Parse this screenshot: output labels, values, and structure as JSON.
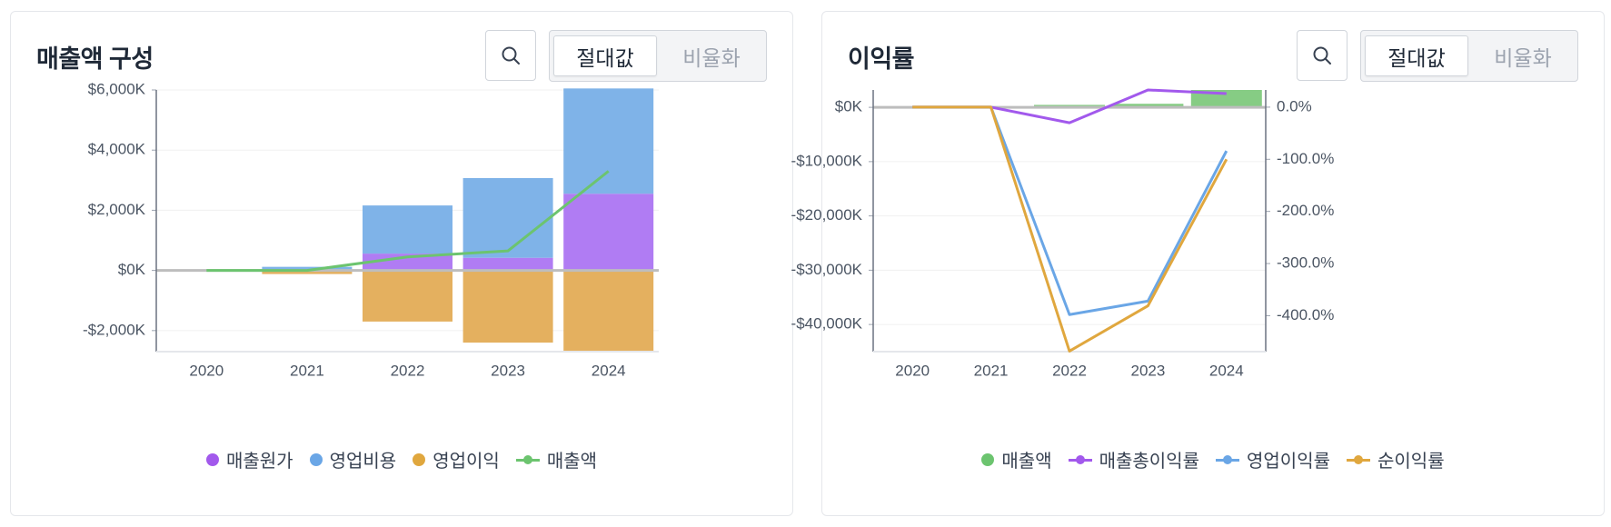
{
  "panels": [
    {
      "title": "매출액 구성",
      "toggle": {
        "options": [
          "절대값",
          "비율화"
        ],
        "selected": "절대값"
      },
      "legend": [
        {
          "label": "매출원가",
          "marker": "dot",
          "color": "#a259ec"
        },
        {
          "label": "영업비용",
          "marker": "dot",
          "color": "#6aa6e6"
        },
        {
          "label": "영업이익",
          "marker": "dot",
          "color": "#e0a73e"
        },
        {
          "label": "매출액",
          "marker": "line",
          "color": "#6cc46f"
        }
      ]
    },
    {
      "title": "이익률",
      "toggle": {
        "options": [
          "절대값",
          "비율화"
        ],
        "selected": "절대값"
      },
      "legend": [
        {
          "label": "매출액",
          "marker": "dot",
          "color": "#6cc46f"
        },
        {
          "label": "매출총이익률",
          "marker": "line",
          "color": "#a259ec"
        },
        {
          "label": "영업이익률",
          "marker": "line",
          "color": "#6aa6e6"
        },
        {
          "label": "순이익률",
          "marker": "line",
          "color": "#e0a73e"
        }
      ]
    }
  ],
  "chart_data": [
    {
      "type": "bar",
      "stacked": true,
      "categories": [
        "2020",
        "2021",
        "2022",
        "2023",
        "2024"
      ],
      "ylim": [
        -2700,
        6000
      ],
      "yticks": [
        -2000,
        0,
        2000,
        4000,
        6000
      ],
      "ytick_labels": [
        "-$2,000K",
        "$0K",
        "$2,000K",
        "$4,000K",
        "$6,000K"
      ],
      "grid": true,
      "series": [
        {
          "name": "매출원가",
          "type": "bar",
          "color": "#b07cf3",
          "values": [
            0,
            30,
            560,
            420,
            2550
          ]
        },
        {
          "name": "영업비용",
          "type": "bar",
          "color": "#7fb3e8",
          "values": [
            0,
            90,
            1600,
            2650,
            3500
          ]
        },
        {
          "name": "영업이익",
          "type": "bar",
          "color": "#e4b05f",
          "values": [
            0,
            -120,
            -1700,
            -2400,
            -2700
          ]
        },
        {
          "name": "매출액",
          "type": "line",
          "color": "#6cc46f",
          "values": [
            0,
            0,
            450,
            650,
            3300
          ]
        }
      ]
    },
    {
      "type": "line",
      "categories": [
        "2020",
        "2021",
        "2022",
        "2023",
        "2024"
      ],
      "ylim_left": [
        -45000,
        3200
      ],
      "yticks_left": [
        -40000,
        -30000,
        -20000,
        -10000,
        0
      ],
      "ytick_labels_left": [
        "-$40,000K",
        "-$30,000K",
        "-$20,000K",
        "-$10,000K",
        "$0K"
      ],
      "ylim_right": [
        -469,
        33
      ],
      "yticks_right": [
        -400,
        -300,
        -200,
        -100,
        0
      ],
      "ytick_labels_right": [
        "-400.0%",
        "-300.0%",
        "-200.0%",
        "-100.0%",
        "0.0%"
      ],
      "grid": true,
      "series": [
        {
          "name": "매출액",
          "type": "bar",
          "axis": "left",
          "color": "#86cc84",
          "values": [
            0,
            0,
            450,
            650,
            3300
          ]
        },
        {
          "name": "매출총이익률",
          "type": "line",
          "axis": "right",
          "color": "#a259ec",
          "values": [
            0,
            0,
            -30,
            35,
            26
          ]
        },
        {
          "name": "영업이익률",
          "type": "line",
          "axis": "right",
          "color": "#6aa6e6",
          "values": [
            0,
            0,
            -398,
            -372,
            -84
          ]
        },
        {
          "name": "순이익률",
          "type": "line",
          "axis": "right",
          "color": "#e0a73e",
          "values": [
            0,
            0,
            -468,
            -381,
            -100
          ]
        }
      ]
    }
  ]
}
